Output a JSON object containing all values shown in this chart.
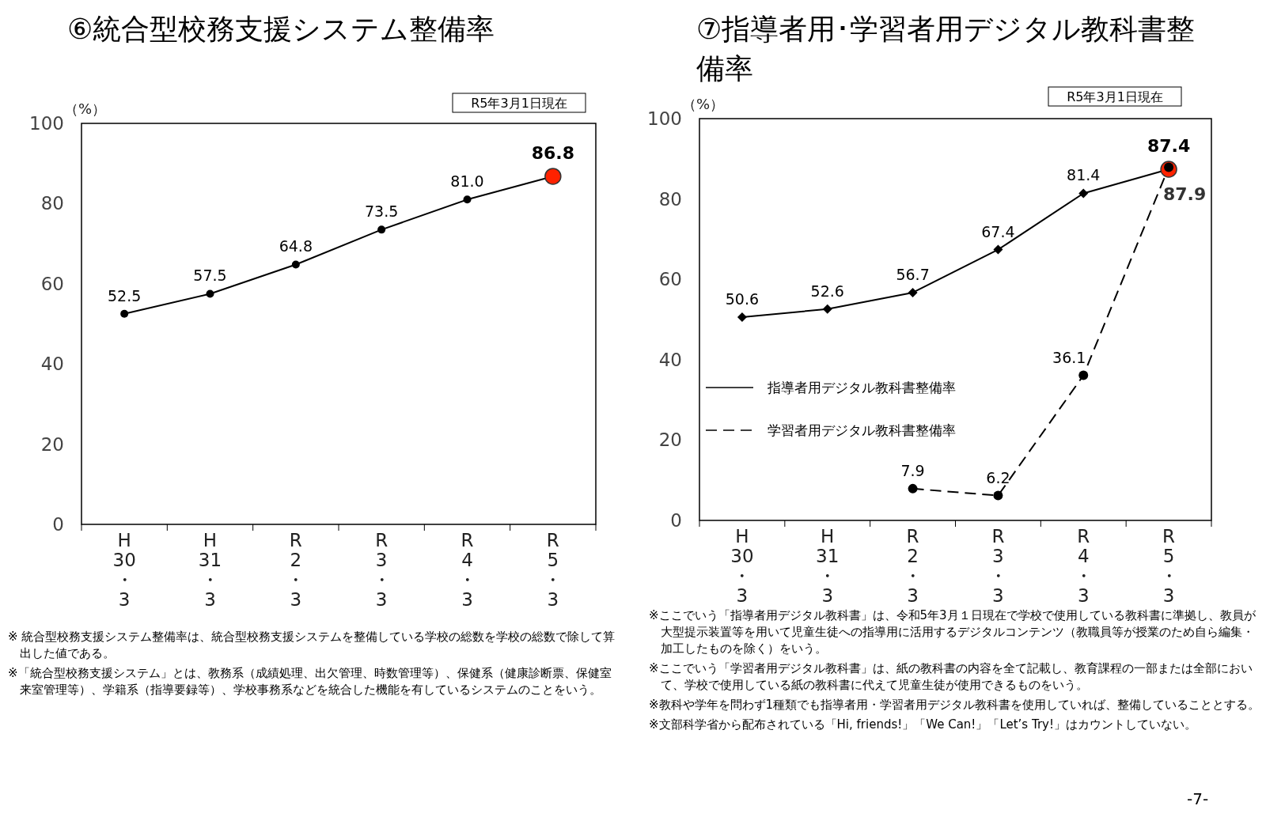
{
  "chart_data": [
    {
      "type": "line",
      "title": "⑥統合型校務支援システム整備率",
      "ylabel": "（%）",
      "categories": [
        "H\n30\n・\n3",
        "H\n31\n・\n3",
        "R\n2\n・\n3",
        "R\n3\n・\n3",
        "R\n4\n・\n3",
        "R\n5\n・\n3"
      ],
      "series": [
        {
          "color": "#000000",
          "colors": [
            "#000000",
            "#000000",
            "#000000",
            "#000000",
            "#000000",
            "#ff2200"
          ],
          "marker": "circle",
          "line_style": "solid",
          "values": [
            52.5,
            57.5,
            64.8,
            73.5,
            81.0,
            86.8
          ],
          "value_labels": [
            "52.5",
            "57.5",
            "64.8",
            "73.5",
            "81.0",
            "86.8"
          ]
        }
      ],
      "ylim": [
        0,
        100
      ],
      "yticks": [
        0,
        20,
        40,
        60,
        80,
        100
      ],
      "grid": false,
      "legend": false,
      "annotations": [
        "R5年3月1日現在",
        "※ 統合型校務支援システム整備率は、統合型校務支援システムを整備している学校の総数を学校の総数で除して算出した値である。",
        "※「統合型校務支援システム」とは、教務系（成績処理、出欠管理、時数管理等）、保健系（健康診断票、保健室来室管理等）、学籍系（指導要録等）、学校事務系などを統合した機能を有しているシステムのことをいう。"
      ]
    },
    {
      "type": "line",
      "title": "⑦指導者用･学習者用デジタル教科書整備率",
      "ylabel": "（%）",
      "categories": [
        "H\n30\n・\n3",
        "H\n31\n・\n3",
        "R\n2\n・\n3",
        "R\n3\n・\n3",
        "R\n4\n・\n3",
        "R\n5\n・\n3"
      ],
      "series": [
        {
          "name": "指導者用デジタル教科書整備率",
          "color": "#000000",
          "colors": [
            "#000000",
            "#000000",
            "#000000",
            "#000000",
            "#000000",
            "#ff2200"
          ],
          "marker": "diamond",
          "line_style": "solid",
          "values": [
            50.6,
            52.6,
            56.7,
            67.4,
            81.4,
            87.4
          ],
          "value_labels": [
            "50.6",
            "52.6",
            "56.7",
            "67.4",
            "81.4",
            "87.4"
          ]
        },
        {
          "name": "学習者用デジタル教科書整備率",
          "color": "#000000",
          "marker": "circle",
          "line_style": "dashed",
          "values": [
            null,
            null,
            7.9,
            6.2,
            36.1,
            87.9
          ],
          "value_labels": [
            null,
            null,
            "7.9",
            "6.2",
            "36.1",
            "87.9"
          ]
        }
      ],
      "ylim": [
        0,
        100
      ],
      "yticks": [
        0,
        20,
        40,
        60,
        80,
        100
      ],
      "grid": false,
      "legend": "left",
      "annotations": [
        "R5年3月1日現在",
        "※ここでいう「指導者用デジタル教科書」は、令和5年3月１日現在で学校で使用している教科書に準拠し、教員が大型提示装置等を用いて児童生徒への指導用に活用するデジタルコンテンツ（教職員等が授業のため自ら編集・加工したものを除く）をいう。",
        "※ここでいう「学習者用デジタル教科書」は、紙の教科書の内容を全て記載し、教育課程の一部または全部において、学校で使用している紙の教科書に代えて児童生徒が使用できるものをいう。",
        "※教科や学年を問わず1種類でも指導者用・学習者用デジタル教科書を使用していれば、整備していることとする。",
        "※文部科学省から配布されている「Hi, friends!」「We Can!」「Let’s Try!」はカウントしていない。",
        "-7-"
      ]
    }
  ]
}
